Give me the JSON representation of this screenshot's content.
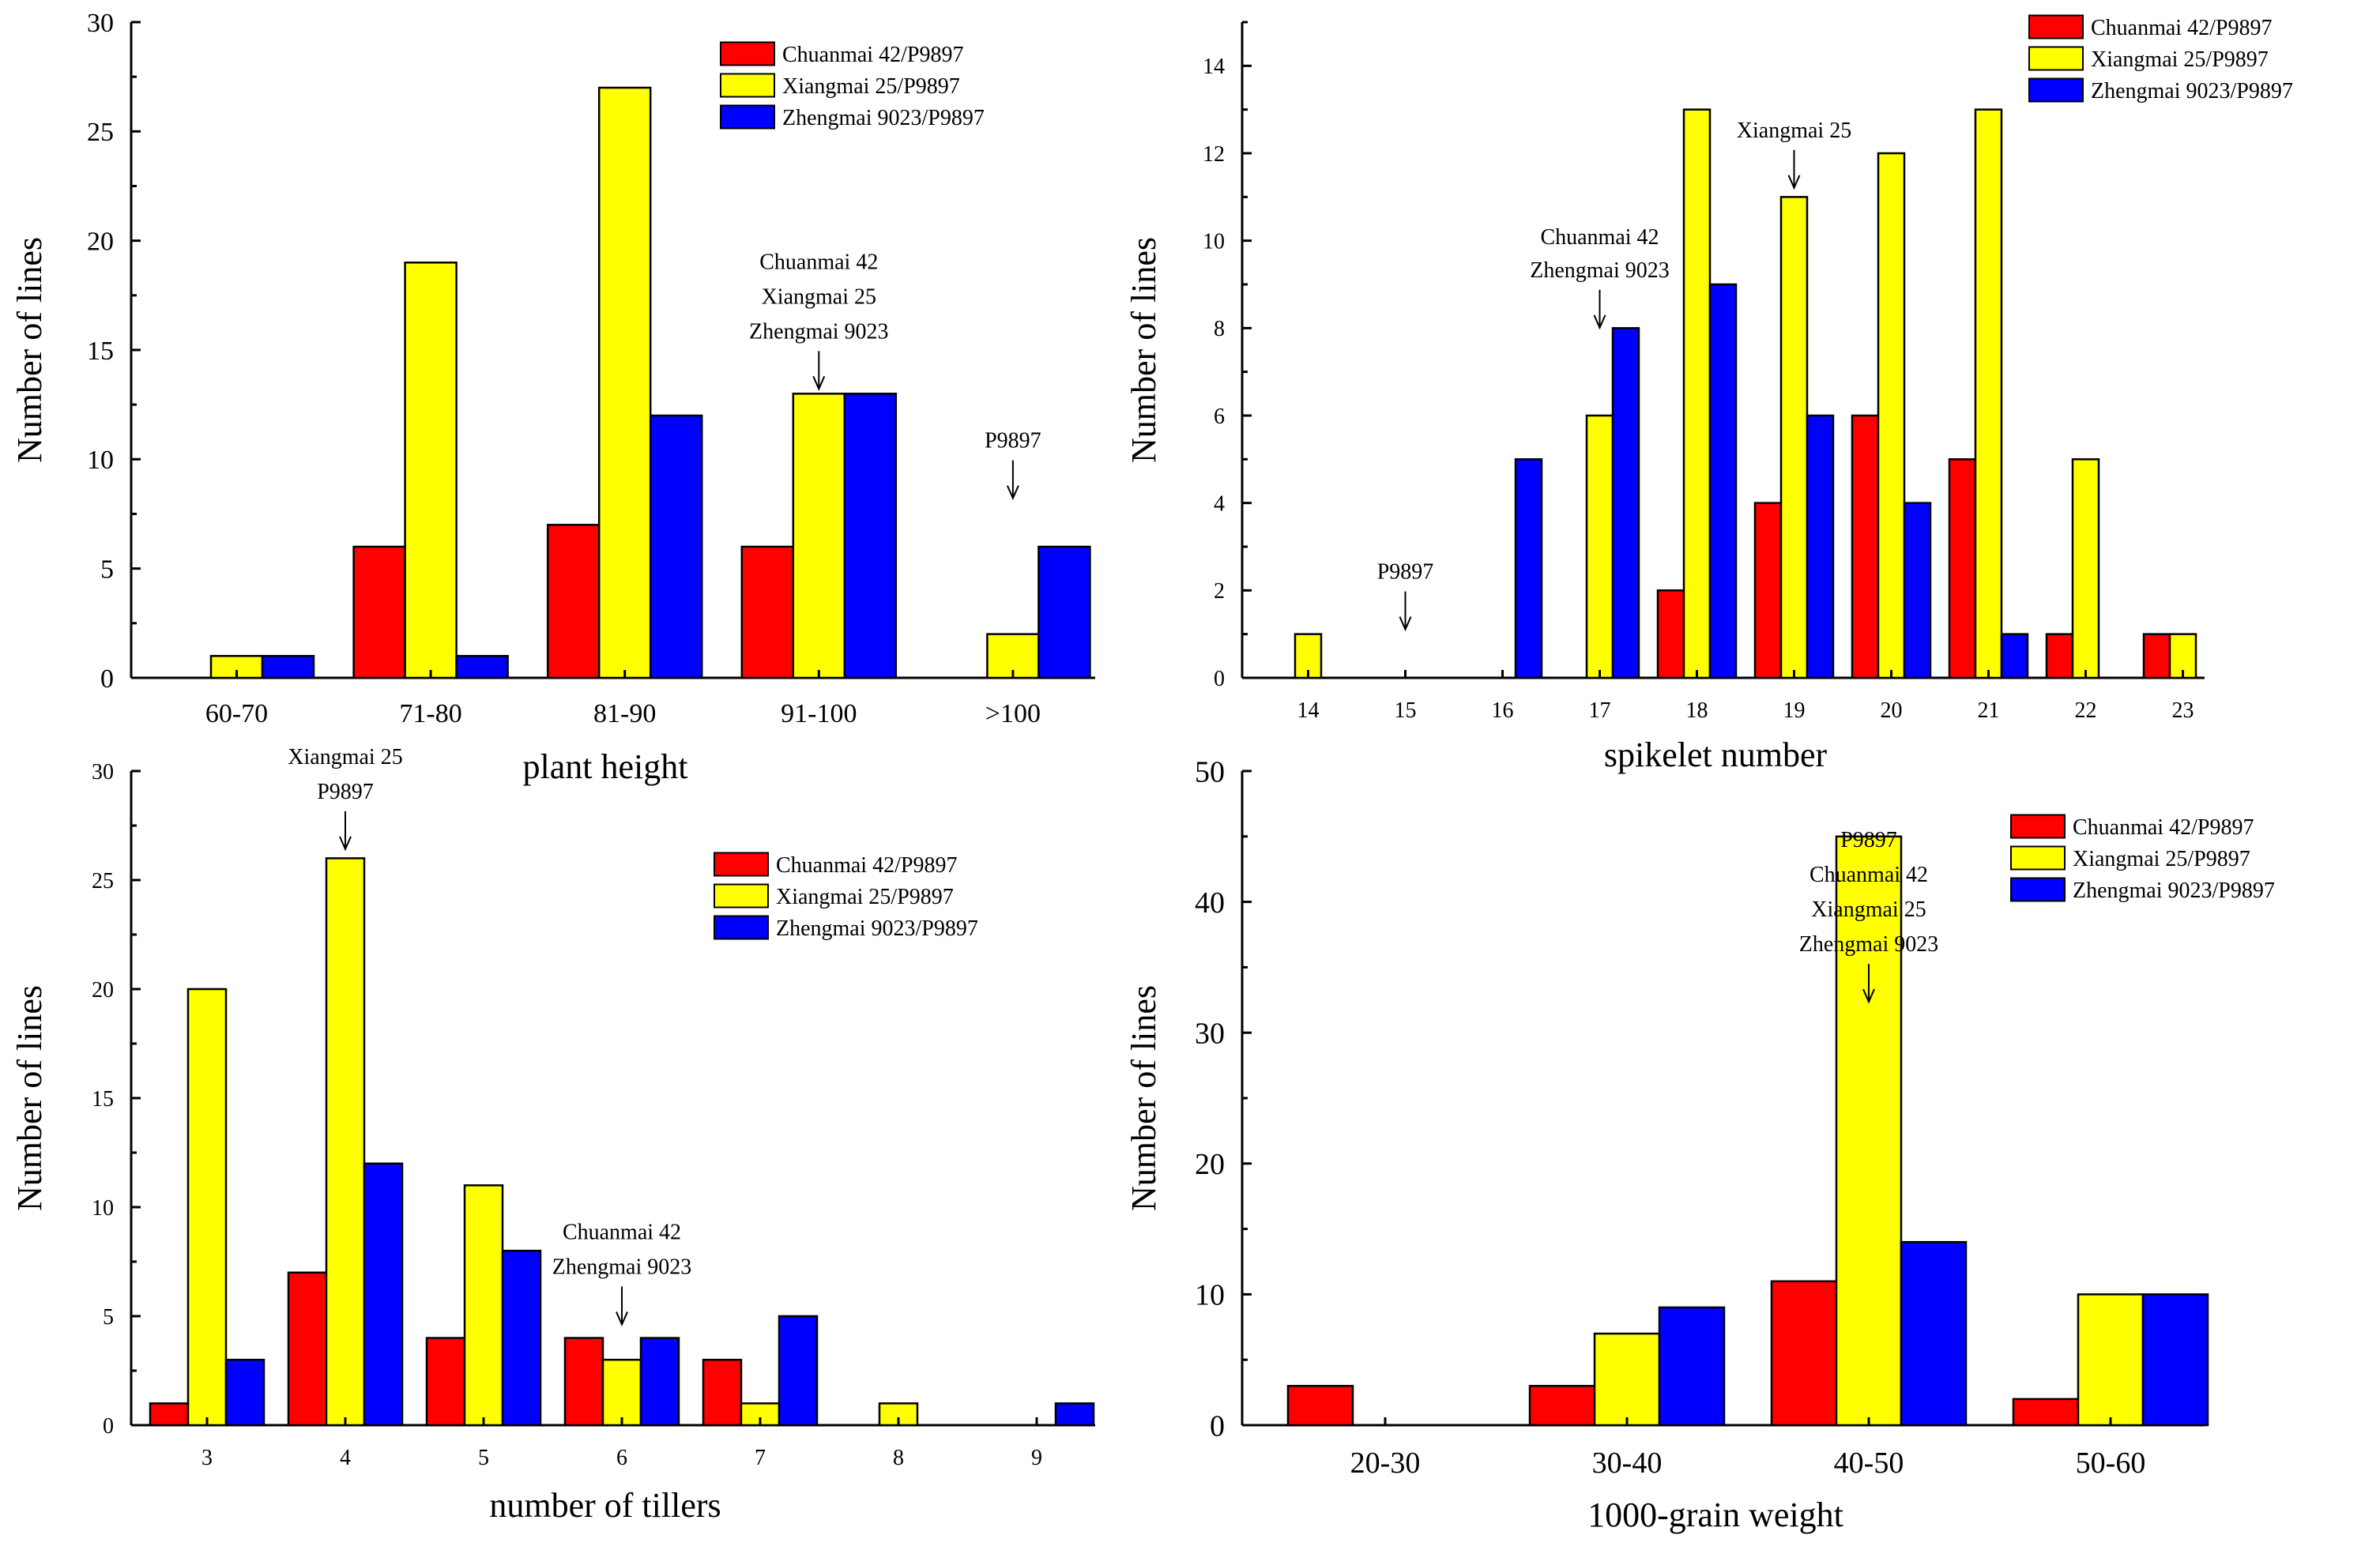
{
  "colors": {
    "series1": "#ff0000",
    "series2": "#ffff00",
    "series3": "#0000ff"
  },
  "chart_data": [
    {
      "type": "bar",
      "xlabel": "plant height",
      "ylabel": "Number of lines",
      "ylim": [
        0,
        30
      ],
      "yticks": [
        0,
        5,
        10,
        15,
        20,
        25,
        30
      ],
      "categories": [
        "60-70",
        "71-80",
        "81-90",
        "91-100",
        ">100"
      ],
      "series": [
        {
          "name": "Chuanmai 42/P9897",
          "values": [
            0,
            6,
            7,
            6,
            0
          ]
        },
        {
          "name": "Xiangmai 25/P9897",
          "values": [
            1,
            19,
            27,
            13,
            2
          ]
        },
        {
          "name": "Zhengmai 9023/P9897",
          "values": [
            1,
            1,
            12,
            13,
            6
          ]
        }
      ],
      "annotations": [
        {
          "lines": [
            "Chuanmai 42",
            "Xiangmai 25",
            "Zhengmai 9023"
          ],
          "category": "91-100",
          "at": 13
        },
        {
          "lines": [
            "P9897"
          ],
          "category": ">100",
          "at": 8
        }
      ]
    },
    {
      "type": "bar",
      "xlabel": "spikelet number",
      "ylabel": "Number of lines",
      "ylim": [
        0,
        15
      ],
      "yticks": [
        0,
        2,
        4,
        6,
        8,
        10,
        12,
        14
      ],
      "categories": [
        "14",
        "15",
        "16",
        "17",
        "18",
        "19",
        "20",
        "21",
        "22",
        "23"
      ],
      "series": [
        {
          "name": "Chuanmai 42/P9897",
          "values": [
            0,
            0,
            0,
            0,
            2,
            4,
            6,
            5,
            1,
            1
          ]
        },
        {
          "name": "Xiangmai 25/P9897",
          "values": [
            1,
            0,
            0,
            6,
            13,
            11,
            12,
            13,
            5,
            1
          ]
        },
        {
          "name": "Zhengmai 9023/P9897",
          "values": [
            0,
            0,
            5,
            8,
            9,
            6,
            4,
            1,
            0,
            0
          ]
        }
      ],
      "annotations": [
        {
          "lines": [
            "Xiangmai 25"
          ],
          "category": "19",
          "at": 11.1
        },
        {
          "lines": [
            "Chuanmai 42",
            "Zhengmai 9023"
          ],
          "category": "17",
          "at": 7.9
        },
        {
          "lines": [
            "P9897"
          ],
          "category": "15",
          "at": 1
        }
      ]
    },
    {
      "type": "bar",
      "xlabel": "number of tillers",
      "ylabel": "Number of lines",
      "ylim": [
        0,
        30
      ],
      "yticks": [
        0,
        5,
        10,
        15,
        20,
        25,
        30
      ],
      "categories": [
        "3",
        "4",
        "5",
        "6",
        "7",
        "8",
        "9"
      ],
      "series": [
        {
          "name": "Chuanmai 42/P9897",
          "values": [
            1,
            7,
            4,
            4,
            3,
            0,
            0
          ]
        },
        {
          "name": "Xiangmai 25/P9897",
          "values": [
            20,
            26,
            11,
            3,
            1,
            1,
            0
          ]
        },
        {
          "name": "Zhengmai 9023/P9897",
          "values": [
            3,
            12,
            8,
            4,
            5,
            0,
            1
          ]
        }
      ],
      "annotations": [
        {
          "lines": [
            "Xiangmai 25",
            "P9897"
          ],
          "category": "4",
          "at": 26.2
        },
        {
          "lines": [
            "Chuanmai 42",
            "Zhengmai 9023"
          ],
          "category": "6",
          "at": 4.4
        }
      ]
    },
    {
      "type": "bar",
      "xlabel": "1000-grain weight",
      "ylabel": "Number of lines",
      "ylim": [
        0,
        50
      ],
      "yticks": [
        0,
        10,
        20,
        30,
        40,
        50
      ],
      "categories": [
        "20-30",
        "30-40",
        "40-50",
        "50-60"
      ],
      "series": [
        {
          "name": "Chuanmai 42/P9897",
          "values": [
            3,
            3,
            11,
            2
          ]
        },
        {
          "name": "Xiangmai 25/P9897",
          "values": [
            0,
            7,
            45,
            10
          ]
        },
        {
          "name": "Zhengmai 9023/P9897",
          "values": [
            0,
            9,
            14,
            10
          ]
        }
      ],
      "annotations": [
        {
          "lines": [
            "P9897",
            "Chuanmai 42",
            "Xiangmai 25",
            "Zhengmai 9023"
          ],
          "category": "40-50",
          "at": 32
        }
      ]
    }
  ]
}
